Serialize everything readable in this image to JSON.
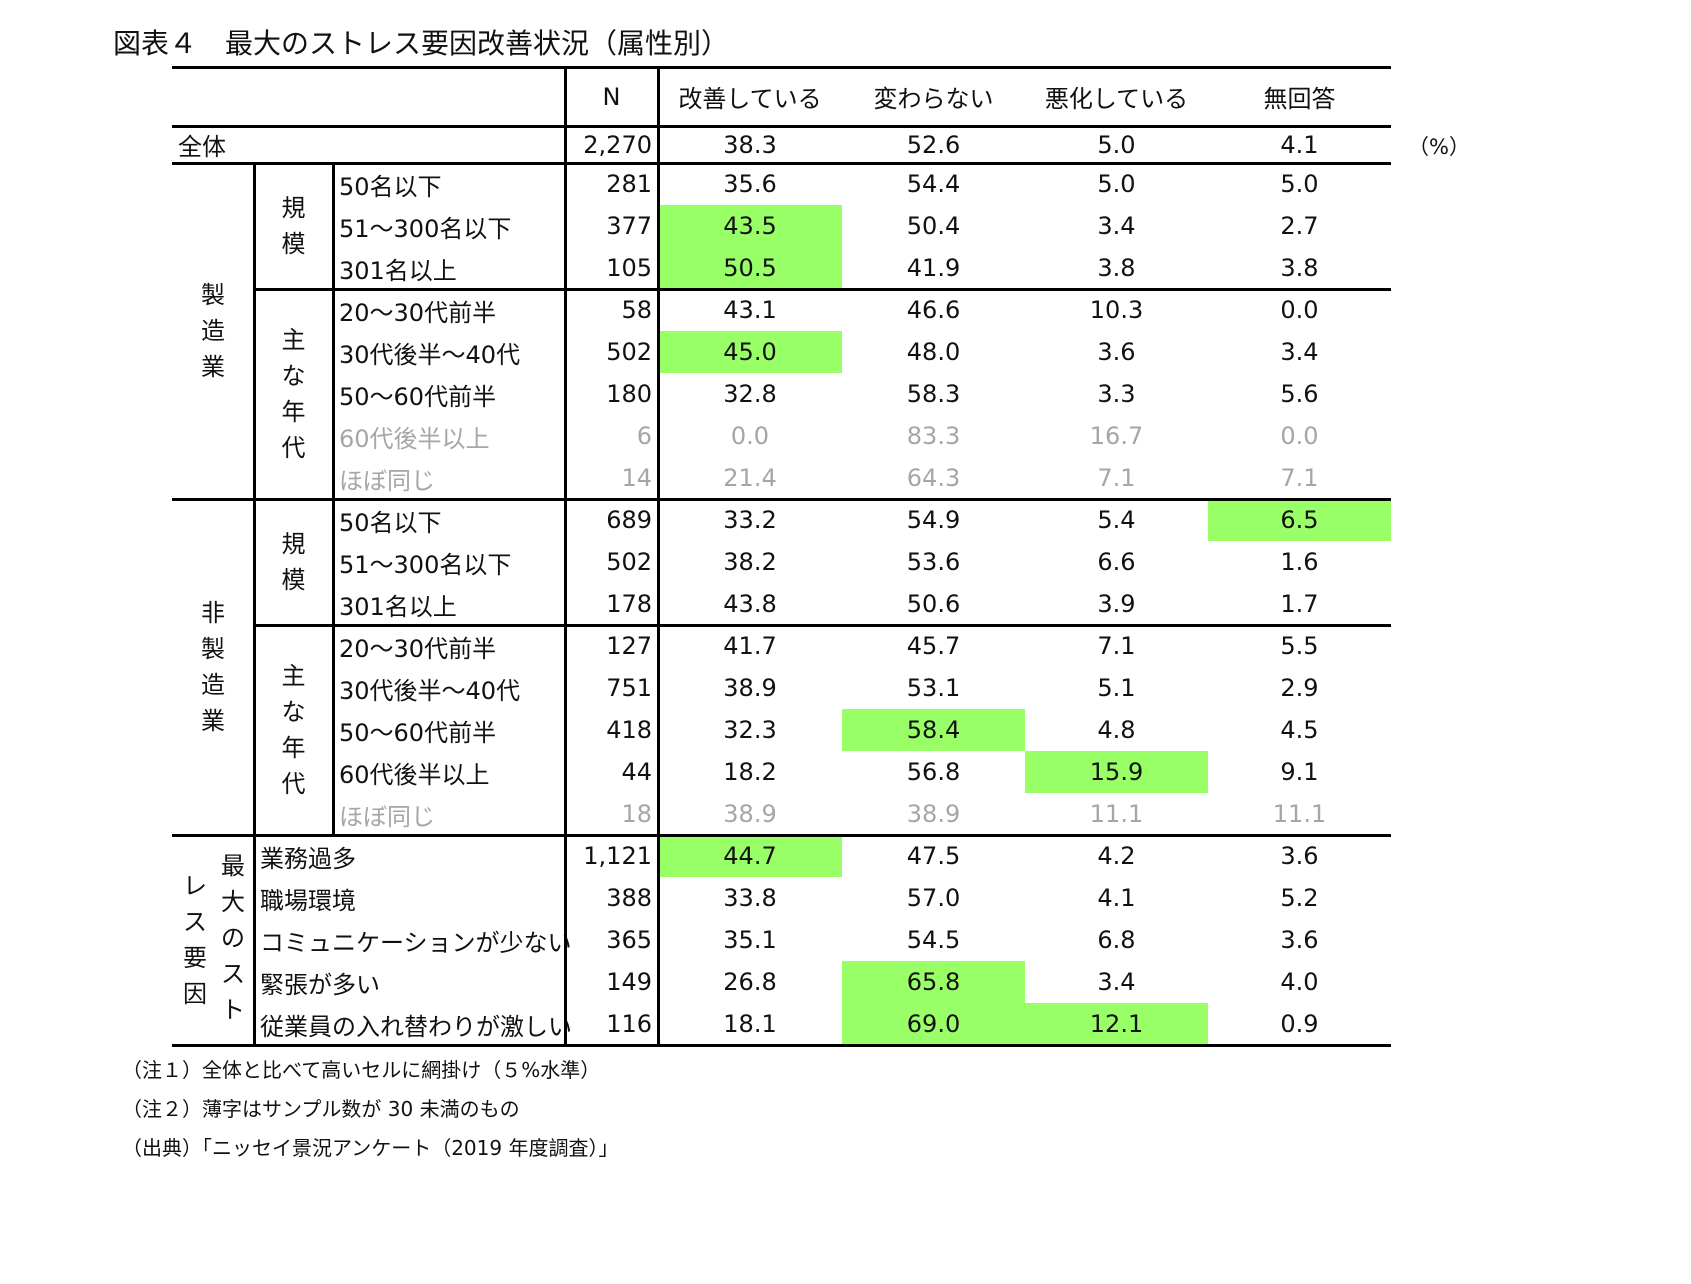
{
  "title": "図表４　最大のストレス要因改善状況（属性別）",
  "unit": "（%）",
  "colors": {
    "highlight": "#99ff66",
    "faded_text": "#a6a6a6",
    "text": "#111111",
    "rule": "#000000"
  },
  "columns": [
    "N",
    "改善している",
    "変わらない",
    "悪化している",
    "無回答"
  ],
  "total": {
    "label": "全体",
    "n": "2,270",
    "values": [
      "38.3",
      "52.6",
      "5.0",
      "4.1"
    ]
  },
  "groups": [
    {
      "label": "製造業",
      "label_chars": [
        "製",
        "造",
        "業"
      ],
      "subgroups": [
        {
          "label": "規模",
          "label_chars": [
            "規",
            "模"
          ],
          "rows": [
            {
              "label": "50名以下",
              "n": "281",
              "values": [
                "35.6",
                "54.4",
                "5.0",
                "5.0"
              ],
              "highlight": [],
              "faded": false
            },
            {
              "label": "51～300名以下",
              "n": "377",
              "values": [
                "43.5",
                "50.4",
                "3.4",
                "2.7"
              ],
              "highlight": [
                0
              ],
              "faded": false
            },
            {
              "label": "301名以上",
              "n": "105",
              "values": [
                "50.5",
                "41.9",
                "3.8",
                "3.8"
              ],
              "highlight": [
                0
              ],
              "faded": false
            }
          ]
        },
        {
          "label": "主な年代",
          "label_chars": [
            "主",
            "な",
            "年",
            "代"
          ],
          "rows": [
            {
              "label": "20～30代前半",
              "n": "58",
              "values": [
                "43.1",
                "46.6",
                "10.3",
                "0.0"
              ],
              "highlight": [],
              "faded": false
            },
            {
              "label": "30代後半～40代",
              "n": "502",
              "values": [
                "45.0",
                "48.0",
                "3.6",
                "3.4"
              ],
              "highlight": [
                0
              ],
              "faded": false
            },
            {
              "label": "50～60代前半",
              "n": "180",
              "values": [
                "32.8",
                "58.3",
                "3.3",
                "5.6"
              ],
              "highlight": [],
              "faded": false
            },
            {
              "label": "60代後半以上",
              "n": "6",
              "values": [
                "0.0",
                "83.3",
                "16.7",
                "0.0"
              ],
              "highlight": [],
              "faded": true
            },
            {
              "label": "ほぼ同じ",
              "n": "14",
              "values": [
                "21.4",
                "64.3",
                "7.1",
                "7.1"
              ],
              "highlight": [],
              "faded": true
            }
          ]
        }
      ]
    },
    {
      "label": "非製造業",
      "label_chars": [
        "非",
        "製",
        "造",
        "業"
      ],
      "subgroups": [
        {
          "label": "規模",
          "label_chars": [
            "規",
            "模"
          ],
          "rows": [
            {
              "label": "50名以下",
              "n": "689",
              "values": [
                "33.2",
                "54.9",
                "5.4",
                "6.5"
              ],
              "highlight": [
                3
              ],
              "faded": false
            },
            {
              "label": "51～300名以下",
              "n": "502",
              "values": [
                "38.2",
                "53.6",
                "6.6",
                "1.6"
              ],
              "highlight": [],
              "faded": false
            },
            {
              "label": "301名以上",
              "n": "178",
              "values": [
                "43.8",
                "50.6",
                "3.9",
                "1.7"
              ],
              "highlight": [],
              "faded": false
            }
          ]
        },
        {
          "label": "主な年代",
          "label_chars": [
            "主",
            "な",
            "年",
            "代"
          ],
          "rows": [
            {
              "label": "20～30代前半",
              "n": "127",
              "values": [
                "41.7",
                "45.7",
                "7.1",
                "5.5"
              ],
              "highlight": [],
              "faded": false
            },
            {
              "label": "30代後半～40代",
              "n": "751",
              "values": [
                "38.9",
                "53.1",
                "5.1",
                "2.9"
              ],
              "highlight": [],
              "faded": false
            },
            {
              "label": "50～60代前半",
              "n": "418",
              "values": [
                "32.3",
                "58.4",
                "4.8",
                "4.5"
              ],
              "highlight": [
                1
              ],
              "faded": false
            },
            {
              "label": "60代後半以上",
              "n": "44",
              "values": [
                "18.2",
                "56.8",
                "15.9",
                "9.1"
              ],
              "highlight": [
                2
              ],
              "faded": false
            },
            {
              "label": "ほぼ同じ",
              "n": "18",
              "values": [
                "38.9",
                "38.9",
                "11.1",
                "11.1"
              ],
              "highlight": [],
              "faded": true
            }
          ]
        }
      ]
    }
  ],
  "stress": {
    "label": "最大のストレス要因",
    "label_col_right": [
      "最",
      "大",
      "の",
      "ス",
      "ト"
    ],
    "label_col_left": [
      "レ",
      "ス",
      "要",
      "因"
    ],
    "rows": [
      {
        "label": "業務過多",
        "n": "1,121",
        "values": [
          "44.7",
          "47.5",
          "4.2",
          "3.6"
        ],
        "highlight": [
          0
        ],
        "faded": false
      },
      {
        "label": "職場環境",
        "n": "388",
        "values": [
          "33.8",
          "57.0",
          "4.1",
          "5.2"
        ],
        "highlight": [],
        "faded": false
      },
      {
        "label": "コミュニケーションが少ない",
        "n": "365",
        "values": [
          "35.1",
          "54.5",
          "6.8",
          "3.6"
        ],
        "highlight": [],
        "faded": false
      },
      {
        "label": "緊張が多い",
        "n": "149",
        "values": [
          "26.8",
          "65.8",
          "3.4",
          "4.0"
        ],
        "highlight": [
          1
        ],
        "faded": false
      },
      {
        "label": "従業員の入れ替わりが激しい",
        "n": "116",
        "values": [
          "18.1",
          "69.0",
          "12.1",
          "0.9"
        ],
        "highlight": [
          1,
          2
        ],
        "faded": false
      }
    ]
  },
  "notes": [
    "（注１）全体と比べて高いセルに網掛け（５%水準）",
    "（注２）薄字はサンプル数が 30 未満のもの",
    "（出典）「ニッセイ景況アンケート（2019 年度調査）」"
  ]
}
